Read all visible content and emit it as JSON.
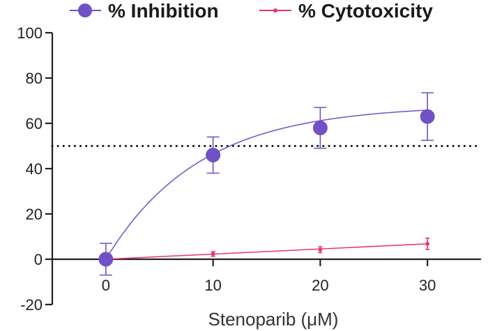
{
  "chart_data": {
    "type": "line",
    "title": "",
    "xlabel": "Stenoparib (μM)",
    "ylabel": "",
    "xlim": [
      -5,
      35
    ],
    "ylim": [
      -20,
      100
    ],
    "x_ticks": [
      0,
      10,
      20,
      30
    ],
    "y_ticks": [
      -20,
      0,
      20,
      40,
      60,
      80,
      100
    ],
    "reference_line": {
      "y": 50,
      "style": "dotted"
    },
    "legend_position": "top",
    "series": [
      {
        "name": "% Inhibition",
        "color": "#7151c6",
        "marker": "circle",
        "x": [
          0,
          10,
          20,
          30
        ],
        "values": [
          0,
          46,
          58,
          63
        ],
        "error": [
          7,
          8,
          9,
          10.5
        ],
        "fit": "saturating curve"
      },
      {
        "name": "% Cytotoxicity",
        "color": "#e8317a",
        "marker": "dot",
        "x": [
          0,
          10,
          20,
          30
        ],
        "values": [
          0,
          2.3,
          4.2,
          6.8
        ],
        "error": [
          0.5,
          1,
          1.3,
          2.5
        ],
        "fit": "straight line"
      }
    ]
  }
}
